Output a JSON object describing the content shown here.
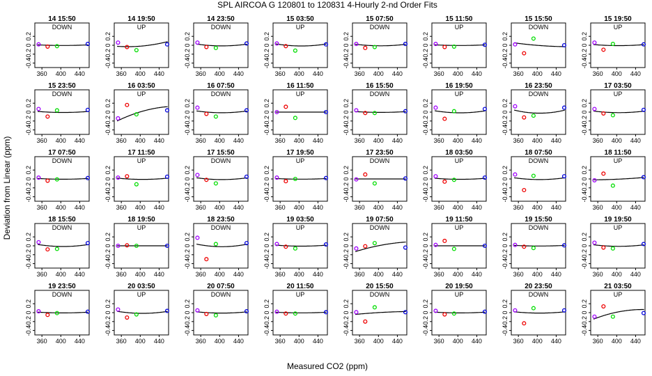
{
  "chart_data": {
    "type": "scatter",
    "title": "SPL   AIRCOA G   120801 to 120831   4-Hourly 2-nd Order Fits",
    "xlabel": "Measured CO2 (ppm)",
    "ylabel": "Deviation from Linear (ppm)",
    "xlim": [
      345,
      460
    ],
    "ylim": [
      -0.5,
      0.5
    ],
    "xticks": [
      360,
      400,
      440
    ],
    "yticks": [
      -0.4,
      -0.2,
      0.0,
      0.2
    ],
    "ytick_labels": [
      "-0.4",
      "-0.2",
      "0",
      "0.2"
    ],
    "standard_x": [
      353,
      372,
      392,
      457
    ],
    "marker_colors": [
      "#a000ff",
      "#ee0000",
      "#00dd00",
      "#0000dd"
    ],
    "layout": {
      "rows": 5,
      "cols": 8
    },
    "panels": [
      {
        "time": "14 15:50",
        "dir": "DOWN",
        "points": [
          0.02,
          -0.03,
          -0.02,
          0.03
        ],
        "fit": [
          0.0012,
          0
        ]
      },
      {
        "time": "14 19:50",
        "dir": "UP",
        "points": [
          0.06,
          -0.04,
          -0.11,
          0.02
        ],
        "fit": [
          0.004,
          0.001
        ]
      },
      {
        "time": "14 23:50",
        "dir": "DOWN",
        "points": [
          0.06,
          -0.04,
          -0.06,
          0.04
        ],
        "fit": [
          0.0035,
          0
        ]
      },
      {
        "time": "15 03:50",
        "dir": "UP",
        "points": [
          0.04,
          -0.02,
          -0.12,
          0.02
        ],
        "fit": [
          0.004,
          0
        ]
      },
      {
        "time": "15 07:50",
        "dir": "DOWN",
        "points": [
          0.03,
          -0.06,
          -0.04,
          0.03
        ],
        "fit": [
          0.003,
          0
        ]
      },
      {
        "time": "15 11:50",
        "dir": "UP",
        "points": [
          0.03,
          -0.04,
          -0.03,
          0.01
        ],
        "fit": [
          0.0012,
          0
        ]
      },
      {
        "time": "15 15:50",
        "dir": "DOWN",
        "points": [
          0.02,
          -0.18,
          0.15,
          0.0
        ],
        "fit": [
          0.0015,
          -0.0008
        ]
      },
      {
        "time": "15 19:50",
        "dir": "UP",
        "points": [
          0.06,
          -0.1,
          0.03,
          0.02
        ],
        "fit": [
          0.002,
          0
        ]
      },
      {
        "time": "15 23:50",
        "dir": "DOWN",
        "points": [
          0.07,
          -0.1,
          0.04,
          0.05
        ],
        "fit": [
          0.002,
          0
        ]
      },
      {
        "time": "16 03:50",
        "dir": "UP",
        "points": [
          -0.14,
          0.16,
          -0.05,
          0.04
        ],
        "fit": [
          -0.005,
          0.003
        ]
      },
      {
        "time": "16 07:50",
        "dir": "DOWN",
        "points": [
          0.1,
          -0.04,
          -0.1,
          0.04
        ],
        "fit": [
          0.0035,
          0
        ]
      },
      {
        "time": "16 11:50",
        "dir": "UP",
        "points": [
          0.0,
          0.12,
          -0.13,
          0.0
        ],
        "fit": [
          0,
          0
        ]
      },
      {
        "time": "16 15:50",
        "dir": "DOWN",
        "points": [
          0.04,
          -0.02,
          -0.02,
          0.02
        ],
        "fit": [
          0.0015,
          0
        ]
      },
      {
        "time": "16 19:50",
        "dir": "UP",
        "points": [
          0.1,
          -0.15,
          0.02,
          0.07
        ],
        "fit": [
          0.004,
          0
        ]
      },
      {
        "time": "16 23:50",
        "dir": "DOWN",
        "points": [
          0.13,
          -0.12,
          -0.08,
          0.1
        ],
        "fit": [
          0.006,
          0
        ]
      },
      {
        "time": "17 03:50",
        "dir": "UP",
        "points": [
          0.07,
          -0.03,
          -0.07,
          0.05
        ],
        "fit": [
          0.003,
          0
        ]
      },
      {
        "time": "17 07:50",
        "dir": "DOWN",
        "points": [
          0.03,
          -0.04,
          -0.01,
          0.02
        ],
        "fit": [
          0.0015,
          0
        ]
      },
      {
        "time": "17 11:50",
        "dir": "UP",
        "points": [
          0.03,
          0.06,
          -0.12,
          0.05
        ],
        "fit": [
          0.0025,
          0
        ]
      },
      {
        "time": "17 15:50",
        "dir": "DOWN",
        "points": [
          0.09,
          -0.02,
          -0.1,
          0.05
        ],
        "fit": [
          0.0035,
          0
        ]
      },
      {
        "time": "17 19:50",
        "dir": "UP",
        "points": [
          0.03,
          -0.05,
          0.0,
          0.02
        ],
        "fit": [
          0.0012,
          0
        ]
      },
      {
        "time": "17 23:50",
        "dir": "DOWN",
        "points": [
          -0.01,
          0.1,
          -0.1,
          0.01
        ],
        "fit": [
          0,
          0
        ]
      },
      {
        "time": "18 03:50",
        "dir": "UP",
        "points": [
          0.06,
          -0.06,
          -0.02,
          0.03
        ],
        "fit": [
          0.002,
          0
        ]
      },
      {
        "time": "18 07:50",
        "dir": "DOWN",
        "points": [
          0.1,
          -0.25,
          0.07,
          0.06
        ],
        "fit": [
          0.0035,
          0
        ]
      },
      {
        "time": "18 11:50",
        "dir": "UP",
        "points": [
          -0.03,
          0.12,
          -0.15,
          0.04
        ],
        "fit": [
          0.001,
          0.0005
        ]
      },
      {
        "time": "18 15:50",
        "dir": "DOWN",
        "points": [
          0.08,
          -0.08,
          -0.07,
          0.06
        ],
        "fit": [
          0.004,
          0
        ]
      },
      {
        "time": "18 19:50",
        "dir": "UP",
        "points": [
          0.0,
          0.01,
          0.0,
          0.0
        ],
        "fit": [
          0,
          0
        ]
      },
      {
        "time": "18 23:50",
        "dir": "DOWN",
        "points": [
          0.18,
          -0.3,
          0.04,
          0.06
        ],
        "fit": [
          0.005,
          0
        ]
      },
      {
        "time": "19 03:50",
        "dir": "UP",
        "points": [
          0.04,
          -0.02,
          -0.06,
          0.03
        ],
        "fit": [
          0.002,
          0
        ]
      },
      {
        "time": "19 07:50",
        "dir": "DOWN",
        "points": [
          -0.06,
          -0.01,
          0.06,
          -0.04
        ],
        "fit": [
          -0.003,
          0.002
        ]
      },
      {
        "time": "19 11:50",
        "dir": "UP",
        "points": [
          0.02,
          0.11,
          -0.07,
          0.0
        ],
        "fit": [
          0,
          0
        ]
      },
      {
        "time": "19 15:50",
        "dir": "DOWN",
        "points": [
          0.02,
          -0.02,
          -0.05,
          0.01
        ],
        "fit": [
          0.0012,
          0
        ]
      },
      {
        "time": "19 19:50",
        "dir": "UP",
        "points": [
          0.07,
          -0.04,
          -0.06,
          0.04
        ],
        "fit": [
          0.003,
          0
        ]
      },
      {
        "time": "19 23:50",
        "dir": "DOWN",
        "points": [
          0.03,
          -0.05,
          -0.01,
          0.02
        ],
        "fit": [
          0.0015,
          0
        ]
      },
      {
        "time": "20 03:50",
        "dir": "UP",
        "points": [
          0.07,
          -0.11,
          -0.04,
          0.04
        ],
        "fit": [
          0.004,
          0
        ]
      },
      {
        "time": "20 07:50",
        "dir": "DOWN",
        "points": [
          0.05,
          -0.03,
          -0.06,
          0.03
        ],
        "fit": [
          0.0025,
          0
        ]
      },
      {
        "time": "20 11:50",
        "dir": "UP",
        "points": [
          0.02,
          -0.02,
          -0.02,
          0.01
        ],
        "fit": [
          0.0012,
          0
        ]
      },
      {
        "time": "20 15:50",
        "dir": "DOWN",
        "points": [
          0.01,
          -0.2,
          0.12,
          0.01
        ],
        "fit": [
          -0.001,
          0.0006
        ]
      },
      {
        "time": "20 19:50",
        "dir": "UP",
        "points": [
          0.04,
          -0.04,
          -0.02,
          0.02
        ],
        "fit": [
          0.0015,
          0
        ]
      },
      {
        "time": "20 23:50",
        "dir": "DOWN",
        "points": [
          0.05,
          -0.24,
          0.1,
          0.05
        ],
        "fit": [
          0.0025,
          0
        ]
      },
      {
        "time": "21 03:50",
        "dir": "UP",
        "points": [
          -0.09,
          0.14,
          -0.09,
          -0.01
        ],
        "fit": [
          -0.005,
          0.002
        ]
      }
    ]
  }
}
